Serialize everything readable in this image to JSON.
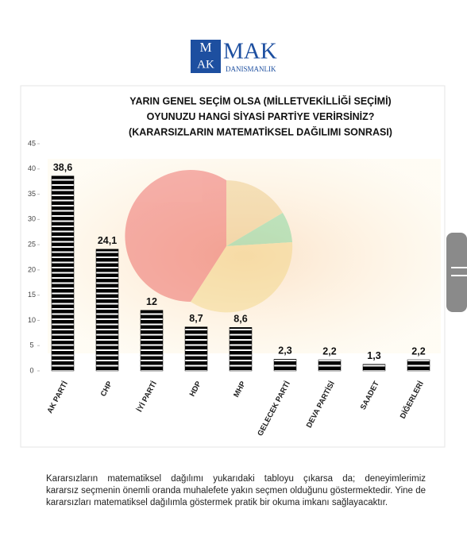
{
  "logo": {
    "mark_top": "M",
    "mark_bottom": "AK",
    "name": "MAK",
    "subtitle": "DANISMANLIK"
  },
  "chart_data": {
    "type": "bar",
    "title": [
      "YARIN GENEL SEÇİM OLSA (MİLLETVEKİLLİĞİ SEÇİMİ)",
      "OYUNUZU HANGİ SİYASİ PARTİYE VERİRSİNİZ?",
      "(KARARSIZLARIN MATEMATİKSEL DAĞILIMI SONRASI)"
    ],
    "categories": [
      "AK PARTİ",
      "CHP",
      "İYİ PARTİ",
      "HDP",
      "MHP",
      "GELECEK PARTİ",
      "DEVA PARTİSİ",
      "SAADET",
      "DİĞERLERİ"
    ],
    "values": [
      38.6,
      24.1,
      12,
      8.7,
      8.6,
      2.3,
      2.2,
      1.3,
      2.2
    ],
    "value_labels": [
      "38,6",
      "24,1",
      "12",
      "8,7",
      "8,6",
      "2,3",
      "2,2",
      "1,3",
      "2,2"
    ],
    "color": "#000000",
    "ylim": [
      0,
      45
    ],
    "yticks": [
      0,
      5,
      10,
      15,
      20,
      25,
      30,
      35,
      40,
      45
    ]
  },
  "paragraph": [
    "Kararsızların matematiksel dağılımı yukarıdaki tabloyu çıkarsa da; deneyimlerimiz",
    "kararsız seçmenin önemli oranda muhalefete yakın seçmen olduğunu göstermektedir. Yine de",
    "kararsızları matematiksel dağılımla göstermek pratik bir okuma imkanı sağlayacaktır."
  ]
}
